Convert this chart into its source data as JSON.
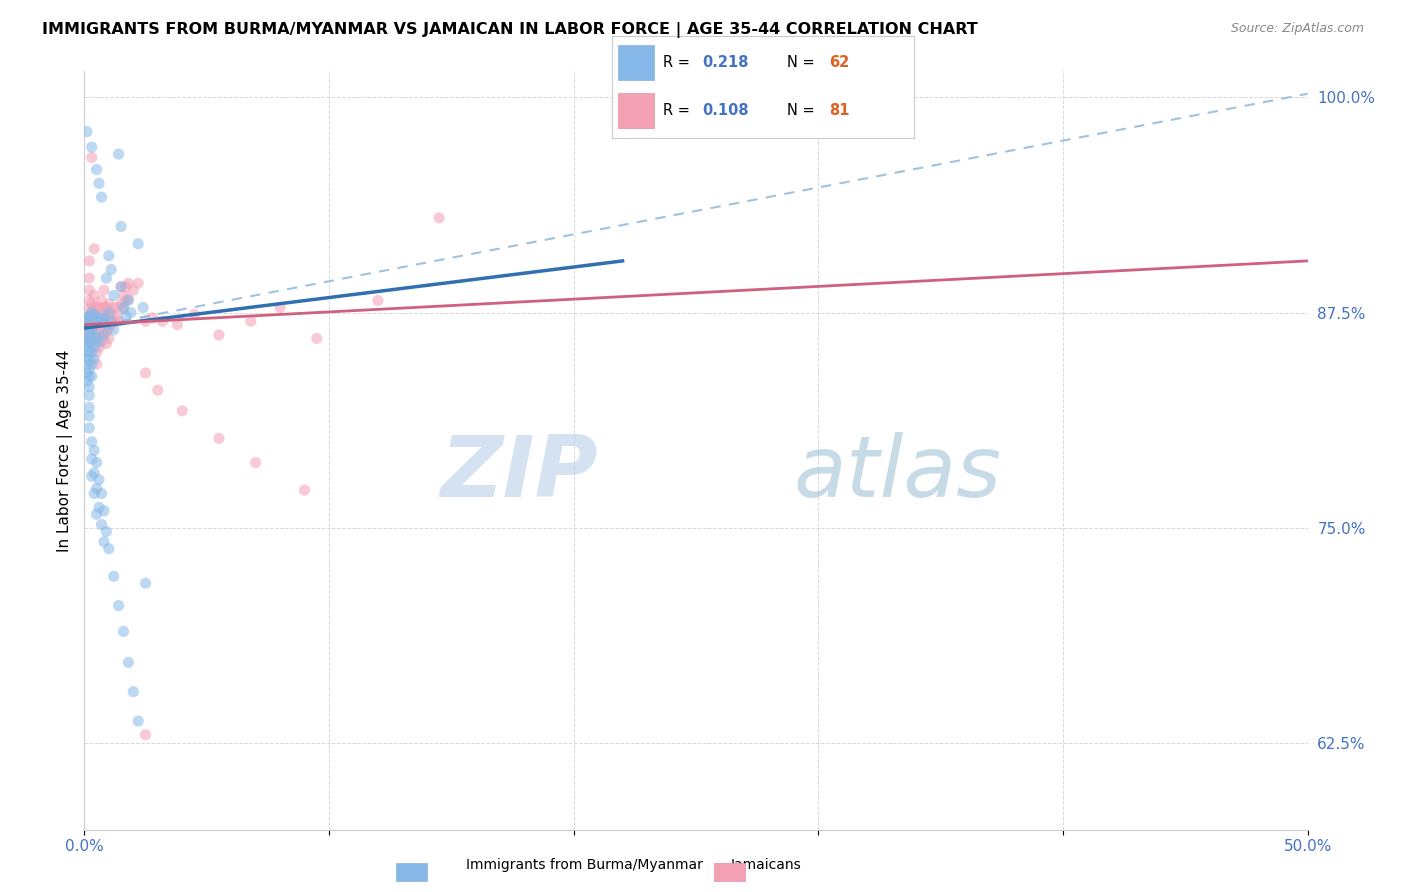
{
  "title": "IMMIGRANTS FROM BURMA/MYANMAR VS JAMAICAN IN LABOR FORCE | AGE 35-44 CORRELATION CHART",
  "source": "Source: ZipAtlas.com",
  "ylabel": "In Labor Force | Age 35-44",
  "xlim": [
    0.0,
    0.5
  ],
  "ylim": [
    0.575,
    1.015
  ],
  "yticks_right": [
    0.625,
    0.75,
    0.875,
    1.0
  ],
  "yticklabels_right": [
    "62.5%",
    "75.0%",
    "87.5%",
    "100.0%"
  ],
  "blue_dots": [
    [
      0.001,
      0.98
    ],
    [
      0.001,
      0.87
    ],
    [
      0.001,
      0.868
    ],
    [
      0.001,
      0.872
    ],
    [
      0.001,
      0.86
    ],
    [
      0.001,
      0.858
    ],
    [
      0.001,
      0.855
    ],
    [
      0.001,
      0.852
    ],
    [
      0.001,
      0.848
    ],
    [
      0.001,
      0.845
    ],
    [
      0.001,
      0.84
    ],
    [
      0.001,
      0.835
    ],
    [
      0.002,
      0.873
    ],
    [
      0.002,
      0.865
    ],
    [
      0.002,
      0.862
    ],
    [
      0.002,
      0.858
    ],
    [
      0.002,
      0.853
    ],
    [
      0.002,
      0.848
    ],
    [
      0.002,
      0.842
    ],
    [
      0.002,
      0.838
    ],
    [
      0.002,
      0.832
    ],
    [
      0.002,
      0.827
    ],
    [
      0.002,
      0.82
    ],
    [
      0.002,
      0.815
    ],
    [
      0.003,
      0.971
    ],
    [
      0.003,
      0.875
    ],
    [
      0.003,
      0.87
    ],
    [
      0.003,
      0.865
    ],
    [
      0.003,
      0.858
    ],
    [
      0.003,
      0.852
    ],
    [
      0.003,
      0.845
    ],
    [
      0.003,
      0.838
    ],
    [
      0.004,
      0.874
    ],
    [
      0.004,
      0.862
    ],
    [
      0.004,
      0.855
    ],
    [
      0.004,
      0.848
    ],
    [
      0.005,
      0.958
    ],
    [
      0.005,
      0.87
    ],
    [
      0.005,
      0.86
    ],
    [
      0.006,
      0.95
    ],
    [
      0.006,
      0.872
    ],
    [
      0.006,
      0.858
    ],
    [
      0.007,
      0.942
    ],
    [
      0.007,
      0.87
    ],
    [
      0.008,
      0.872
    ],
    [
      0.008,
      0.862
    ],
    [
      0.009,
      0.895
    ],
    [
      0.009,
      0.868
    ],
    [
      0.01,
      0.908
    ],
    [
      0.01,
      0.875
    ],
    [
      0.011,
      0.9
    ],
    [
      0.011,
      0.87
    ],
    [
      0.012,
      0.885
    ],
    [
      0.012,
      0.865
    ],
    [
      0.014,
      0.967
    ],
    [
      0.015,
      0.925
    ],
    [
      0.015,
      0.89
    ],
    [
      0.016,
      0.878
    ],
    [
      0.017,
      0.873
    ],
    [
      0.018,
      0.882
    ],
    [
      0.019,
      0.875
    ],
    [
      0.022,
      0.915
    ],
    [
      0.024,
      0.878
    ]
  ],
  "blue_dots_lower": [
    [
      0.002,
      0.808
    ],
    [
      0.003,
      0.8
    ],
    [
      0.003,
      0.79
    ],
    [
      0.003,
      0.78
    ],
    [
      0.004,
      0.795
    ],
    [
      0.004,
      0.782
    ],
    [
      0.004,
      0.77
    ],
    [
      0.005,
      0.788
    ],
    [
      0.005,
      0.773
    ],
    [
      0.005,
      0.758
    ],
    [
      0.006,
      0.778
    ],
    [
      0.006,
      0.762
    ],
    [
      0.007,
      0.77
    ],
    [
      0.007,
      0.752
    ],
    [
      0.008,
      0.76
    ],
    [
      0.008,
      0.742
    ],
    [
      0.009,
      0.748
    ],
    [
      0.01,
      0.738
    ],
    [
      0.012,
      0.722
    ],
    [
      0.014,
      0.705
    ],
    [
      0.016,
      0.69
    ],
    [
      0.018,
      0.672
    ],
    [
      0.02,
      0.655
    ],
    [
      0.022,
      0.638
    ],
    [
      0.025,
      0.718
    ]
  ],
  "pink_dots": [
    [
      0.001,
      0.87
    ],
    [
      0.001,
      0.865
    ],
    [
      0.001,
      0.862
    ],
    [
      0.002,
      0.905
    ],
    [
      0.002,
      0.895
    ],
    [
      0.002,
      0.888
    ],
    [
      0.002,
      0.882
    ],
    [
      0.002,
      0.877
    ],
    [
      0.002,
      0.872
    ],
    [
      0.002,
      0.867
    ],
    [
      0.002,
      0.862
    ],
    [
      0.002,
      0.858
    ],
    [
      0.003,
      0.965
    ],
    [
      0.003,
      0.88
    ],
    [
      0.003,
      0.875
    ],
    [
      0.003,
      0.87
    ],
    [
      0.003,
      0.865
    ],
    [
      0.003,
      0.86
    ],
    [
      0.004,
      0.912
    ],
    [
      0.004,
      0.885
    ],
    [
      0.004,
      0.878
    ],
    [
      0.004,
      0.873
    ],
    [
      0.004,
      0.868
    ],
    [
      0.005,
      0.878
    ],
    [
      0.005,
      0.872
    ],
    [
      0.005,
      0.866
    ],
    [
      0.005,
      0.86
    ],
    [
      0.005,
      0.852
    ],
    [
      0.005,
      0.845
    ],
    [
      0.006,
      0.878
    ],
    [
      0.006,
      0.87
    ],
    [
      0.006,
      0.863
    ],
    [
      0.006,
      0.855
    ],
    [
      0.007,
      0.882
    ],
    [
      0.007,
      0.875
    ],
    [
      0.007,
      0.868
    ],
    [
      0.007,
      0.858
    ],
    [
      0.008,
      0.888
    ],
    [
      0.008,
      0.878
    ],
    [
      0.008,
      0.87
    ],
    [
      0.008,
      0.862
    ],
    [
      0.009,
      0.878
    ],
    [
      0.009,
      0.872
    ],
    [
      0.009,
      0.864
    ],
    [
      0.009,
      0.857
    ],
    [
      0.01,
      0.88
    ],
    [
      0.01,
      0.873
    ],
    [
      0.01,
      0.866
    ],
    [
      0.01,
      0.86
    ],
    [
      0.011,
      0.875
    ],
    [
      0.011,
      0.868
    ],
    [
      0.012,
      0.878
    ],
    [
      0.012,
      0.87
    ],
    [
      0.013,
      0.872
    ],
    [
      0.014,
      0.878
    ],
    [
      0.014,
      0.87
    ],
    [
      0.015,
      0.89
    ],
    [
      0.015,
      0.88
    ],
    [
      0.016,
      0.885
    ],
    [
      0.016,
      0.877
    ],
    [
      0.017,
      0.89
    ],
    [
      0.017,
      0.882
    ],
    [
      0.018,
      0.892
    ],
    [
      0.018,
      0.883
    ],
    [
      0.02,
      0.888
    ],
    [
      0.022,
      0.892
    ],
    [
      0.025,
      0.87
    ],
    [
      0.028,
      0.872
    ],
    [
      0.032,
      0.87
    ],
    [
      0.038,
      0.868
    ],
    [
      0.045,
      0.874
    ],
    [
      0.055,
      0.862
    ],
    [
      0.068,
      0.87
    ],
    [
      0.08,
      0.878
    ],
    [
      0.095,
      0.86
    ],
    [
      0.12,
      0.882
    ],
    [
      0.145,
      0.93
    ],
    [
      0.025,
      0.84
    ],
    [
      0.03,
      0.83
    ],
    [
      0.04,
      0.818
    ],
    [
      0.055,
      0.802
    ],
    [
      0.07,
      0.788
    ],
    [
      0.09,
      0.772
    ],
    [
      0.025,
      0.63
    ]
  ],
  "blue_line": {
    "x0": 0.0,
    "y0": 0.866,
    "x1": 0.22,
    "y1": 0.905
  },
  "pink_line": {
    "x0": 0.0,
    "y0": 0.868,
    "x1": 0.5,
    "y1": 0.905
  },
  "blue_dashed_line": {
    "x0": 0.0,
    "y0": 0.866,
    "x1": 0.5,
    "y1": 1.002
  },
  "watermark_zip": "ZIP",
  "watermark_atlas": "atlas",
  "dot_size": 65,
  "dot_alpha": 0.55,
  "blue_color": "#85b8e8",
  "pink_color": "#f4a0b5",
  "blue_line_color": "#3070b0",
  "pink_line_color": "#d06080",
  "blue_dashed_color": "#90b8d8",
  "grid_color": "#d8d8d8",
  "title_fontsize": 11.5,
  "axis_color": "#4472c4",
  "legend_R_color": "#4472c4",
  "legend_N_color": "#e06020"
}
